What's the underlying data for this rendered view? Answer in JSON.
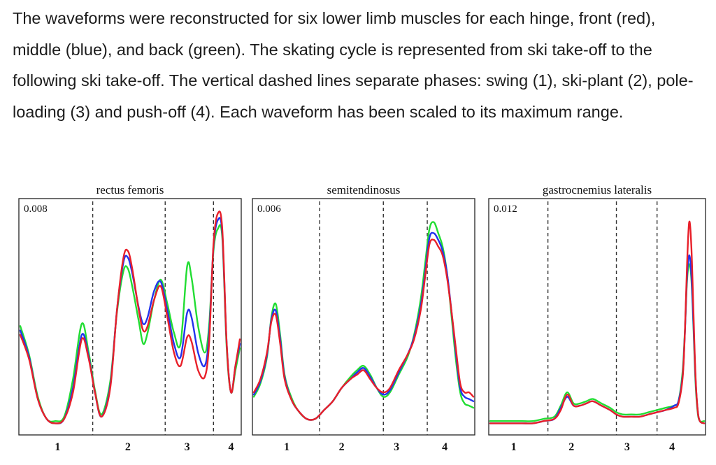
{
  "caption": {
    "text": "The waveforms were reconstructed for six lower limb muscles for each hinge, front (red), middle (blue), and back (green). The skating cycle is represented from ski take-off to the following ski take-off. The vertical dashed lines separate phases: swing (1), ski-plant (2), pole-loading (3) and push-off (4). Each waveform has been scaled to its maximum range."
  },
  "colors": {
    "front": "#e8202a",
    "middle": "#2233ee",
    "back": "#22dd33",
    "frame": "#222222",
    "dashed": "#333333"
  },
  "chart_data": [
    {
      "type": "line",
      "title": "rectus femoris",
      "scale_label": "0.008",
      "x_range": [
        0,
        100
      ],
      "y_range": [
        0,
        1
      ],
      "phase_boundaries": [
        33,
        66,
        88
      ],
      "phase_labels": [
        {
          "label": "1",
          "x": 17
        },
        {
          "label": "2",
          "x": 49
        },
        {
          "label": "3",
          "x": 76
        },
        {
          "label": "4",
          "x": 96
        }
      ],
      "x": [
        0,
        4,
        8,
        12,
        16,
        20,
        24,
        28,
        31,
        34,
        37,
        41,
        44,
        47,
        49,
        51,
        54,
        56,
        58,
        61,
        64,
        67,
        70,
        73,
        76,
        78,
        81,
        84,
        86,
        88,
        90,
        92,
        94,
        96,
        98,
        100
      ],
      "series": [
        {
          "key": "front",
          "values": [
            0.44,
            0.33,
            0.15,
            0.06,
            0.04,
            0.06,
            0.18,
            0.42,
            0.34,
            0.18,
            0.07,
            0.2,
            0.55,
            0.79,
            0.82,
            0.74,
            0.55,
            0.46,
            0.48,
            0.6,
            0.66,
            0.52,
            0.36,
            0.3,
            0.43,
            0.41,
            0.28,
            0.25,
            0.4,
            0.85,
            0.99,
            0.92,
            0.4,
            0.18,
            0.3,
            0.42
          ]
        },
        {
          "key": "middle",
          "values": [
            0.46,
            0.34,
            0.15,
            0.06,
            0.04,
            0.06,
            0.2,
            0.44,
            0.35,
            0.18,
            0.07,
            0.21,
            0.55,
            0.77,
            0.79,
            0.72,
            0.56,
            0.49,
            0.52,
            0.64,
            0.68,
            0.55,
            0.4,
            0.34,
            0.54,
            0.52,
            0.36,
            0.3,
            0.44,
            0.84,
            0.96,
            0.9,
            0.4,
            0.18,
            0.3,
            0.4
          ]
        },
        {
          "key": "back",
          "values": [
            0.48,
            0.35,
            0.16,
            0.06,
            0.05,
            0.07,
            0.24,
            0.49,
            0.37,
            0.19,
            0.08,
            0.23,
            0.54,
            0.73,
            0.74,
            0.66,
            0.5,
            0.4,
            0.45,
            0.6,
            0.69,
            0.58,
            0.45,
            0.4,
            0.75,
            0.7,
            0.48,
            0.36,
            0.48,
            0.82,
            0.92,
            0.88,
            0.38,
            0.18,
            0.28,
            0.38
          ]
        }
      ]
    },
    {
      "type": "line",
      "title": "semitendinosus",
      "scale_label": "0.006",
      "x_range": [
        0,
        100
      ],
      "y_range": [
        0,
        1
      ],
      "phase_boundaries": [
        30,
        59,
        79
      ],
      "phase_labels": [
        {
          "label": "1",
          "x": 15
        },
        {
          "label": "2",
          "x": 40
        },
        {
          "label": "3",
          "x": 65
        },
        {
          "label": "4",
          "x": 87
        }
      ],
      "x": [
        0,
        3,
        6,
        8,
        10,
        12,
        14,
        17,
        20,
        24,
        28,
        32,
        36,
        40,
        44,
        47,
        50,
        53,
        56,
        59,
        62,
        66,
        70,
        73,
        76,
        78,
        80,
        82,
        84,
        86,
        88,
        90,
        92,
        94,
        96,
        98,
        100
      ],
      "series": [
        {
          "key": "front",
          "values": [
            0.18,
            0.24,
            0.36,
            0.5,
            0.53,
            0.4,
            0.24,
            0.15,
            0.1,
            0.06,
            0.06,
            0.1,
            0.14,
            0.2,
            0.24,
            0.26,
            0.28,
            0.24,
            0.2,
            0.18,
            0.2,
            0.28,
            0.35,
            0.42,
            0.55,
            0.7,
            0.85,
            0.87,
            0.84,
            0.8,
            0.7,
            0.55,
            0.38,
            0.22,
            0.18,
            0.18,
            0.16
          ]
        },
        {
          "key": "middle",
          "values": [
            0.17,
            0.23,
            0.35,
            0.51,
            0.55,
            0.42,
            0.25,
            0.15,
            0.1,
            0.06,
            0.06,
            0.1,
            0.14,
            0.2,
            0.24,
            0.27,
            0.29,
            0.25,
            0.2,
            0.17,
            0.19,
            0.27,
            0.35,
            0.43,
            0.57,
            0.72,
            0.88,
            0.9,
            0.87,
            0.82,
            0.72,
            0.55,
            0.36,
            0.2,
            0.16,
            0.15,
            0.14
          ]
        },
        {
          "key": "back",
          "values": [
            0.16,
            0.22,
            0.34,
            0.52,
            0.58,
            0.44,
            0.26,
            0.16,
            0.1,
            0.06,
            0.06,
            0.1,
            0.14,
            0.2,
            0.25,
            0.28,
            0.3,
            0.26,
            0.2,
            0.16,
            0.18,
            0.26,
            0.34,
            0.44,
            0.6,
            0.76,
            0.92,
            0.95,
            0.9,
            0.84,
            0.72,
            0.53,
            0.33,
            0.18,
            0.13,
            0.12,
            0.11
          ]
        }
      ]
    },
    {
      "type": "line",
      "title": "gastrocnemius lateralis",
      "scale_label": "0.012",
      "x_range": [
        0,
        100
      ],
      "y_range": [
        0,
        1
      ],
      "phase_boundaries": [
        27,
        59,
        78
      ],
      "phase_labels": [
        {
          "label": "1",
          "x": 11
        },
        {
          "label": "2",
          "x": 38
        },
        {
          "label": "3",
          "x": 64
        },
        {
          "label": "4",
          "x": 85
        }
      ],
      "x": [
        0,
        5,
        10,
        15,
        20,
        25,
        30,
        33,
        36,
        39,
        42,
        45,
        48,
        52,
        56,
        59,
        62,
        66,
        70,
        74,
        78,
        82,
        86,
        88,
        90,
        91,
        92,
        93,
        94,
        95,
        96,
        97,
        98,
        100
      ],
      "series": [
        {
          "key": "front",
          "values": [
            0.04,
            0.04,
            0.04,
            0.04,
            0.04,
            0.05,
            0.06,
            0.1,
            0.17,
            0.12,
            0.12,
            0.13,
            0.14,
            0.12,
            0.1,
            0.08,
            0.07,
            0.07,
            0.07,
            0.08,
            0.09,
            0.1,
            0.11,
            0.13,
            0.25,
            0.45,
            0.75,
            0.95,
            0.85,
            0.55,
            0.25,
            0.1,
            0.05,
            0.04
          ]
        },
        {
          "key": "middle",
          "values": [
            0.04,
            0.04,
            0.04,
            0.04,
            0.04,
            0.05,
            0.06,
            0.11,
            0.16,
            0.12,
            0.12,
            0.13,
            0.14,
            0.12,
            0.1,
            0.08,
            0.07,
            0.07,
            0.07,
            0.08,
            0.09,
            0.1,
            0.12,
            0.14,
            0.26,
            0.45,
            0.7,
            0.8,
            0.72,
            0.5,
            0.24,
            0.1,
            0.05,
            0.04
          ]
        },
        {
          "key": "back",
          "values": [
            0.05,
            0.05,
            0.05,
            0.05,
            0.05,
            0.06,
            0.07,
            0.12,
            0.18,
            0.13,
            0.13,
            0.14,
            0.15,
            0.13,
            0.11,
            0.09,
            0.08,
            0.08,
            0.08,
            0.09,
            0.1,
            0.11,
            0.12,
            0.14,
            0.28,
            0.46,
            0.68,
            0.76,
            0.7,
            0.48,
            0.22,
            0.09,
            0.05,
            0.05
          ]
        }
      ]
    }
  ]
}
